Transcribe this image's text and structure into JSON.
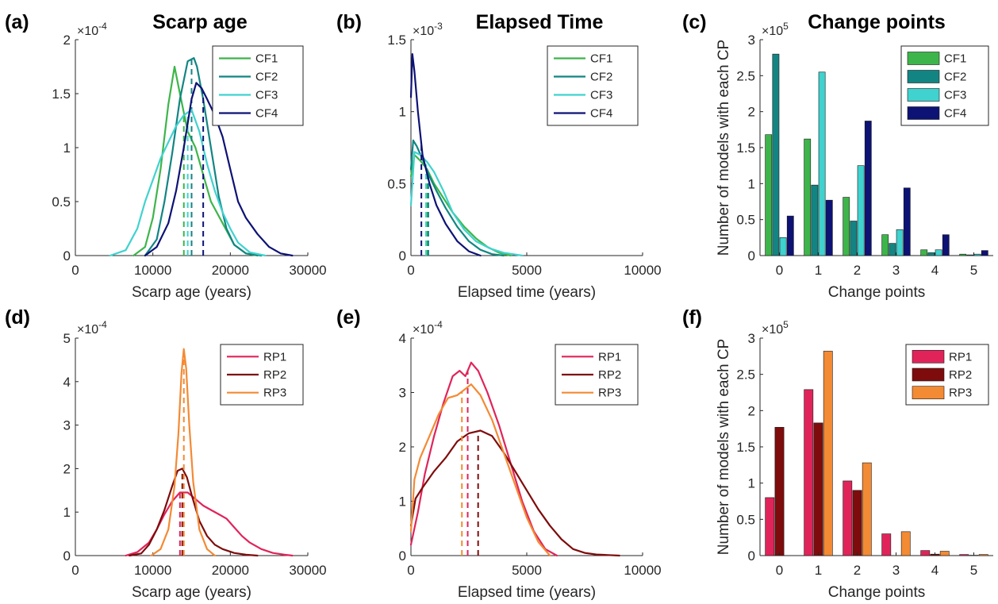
{
  "colors": {
    "CF1": "#3db54a",
    "CF2": "#128583",
    "CF3": "#3fd2cf",
    "CF4": "#0d1275",
    "RP1": "#e0245a",
    "RP2": "#7e0c0c",
    "RP3": "#f38a34"
  },
  "chart_data": [
    {
      "panel": "(a)",
      "type": "line",
      "title": "Scarp age",
      "xlabel": "Scarp age (years)",
      "ylabel": "",
      "xlim": [
        0,
        30000
      ],
      "ylim": [
        0,
        2
      ],
      "y_exponent": "×10^-4",
      "xticks": [
        0,
        10000,
        20000,
        30000
      ],
      "xtick_labels": [
        "0",
        "10000",
        "20000",
        "30000"
      ],
      "yticks": [
        0,
        0.5,
        1,
        1.5,
        2
      ],
      "ytick_labels": [
        "0",
        "0.5",
        "1",
        "1.5",
        "2"
      ],
      "legend_position": "top-right",
      "series": [
        {
          "name": "CF1",
          "color_key": "CF1",
          "median": 14000,
          "x": [
            7500,
            9000,
            10000,
            11000,
            12000,
            12800,
            13500,
            14500,
            15500,
            16500,
            17500,
            19000,
            20500,
            22000,
            23500
          ],
          "y": [
            0,
            0.08,
            0.35,
            0.8,
            1.4,
            1.75,
            1.5,
            1.15,
            1.0,
            0.75,
            0.5,
            0.3,
            0.1,
            0.02,
            0
          ]
        },
        {
          "name": "CF2",
          "color_key": "CF2",
          "median": 15000,
          "x": [
            9000,
            10500,
            11500,
            12500,
            13500,
            14500,
            15300,
            15700,
            16500,
            17500,
            18500,
            19500,
            20500,
            22000,
            24000
          ],
          "y": [
            0,
            0.15,
            0.5,
            0.95,
            1.45,
            1.8,
            1.83,
            1.75,
            1.45,
            1.0,
            0.55,
            0.25,
            0.1,
            0.02,
            0
          ]
        },
        {
          "name": "CF3",
          "color_key": "CF3",
          "median": 14500,
          "x": [
            4500,
            6500,
            8000,
            9000,
            10000,
            11000,
            12000,
            13000,
            14000,
            15000,
            16000,
            17000,
            18000,
            19000,
            20000,
            21000,
            22500,
            24500
          ],
          "y": [
            0,
            0.05,
            0.25,
            0.5,
            0.7,
            0.9,
            1.05,
            1.2,
            1.3,
            1.35,
            1.15,
            0.85,
            0.6,
            0.4,
            0.25,
            0.12,
            0.03,
            0
          ]
        },
        {
          "name": "CF4",
          "color_key": "CF4",
          "median": 16500,
          "x": [
            9000,
            10500,
            12000,
            13000,
            14000,
            15000,
            15600,
            16300,
            17000,
            18000,
            19000,
            20000,
            21000,
            22000,
            23500,
            25000,
            26500,
            28000
          ],
          "y": [
            0,
            0.08,
            0.3,
            0.6,
            1.0,
            1.45,
            1.6,
            1.55,
            1.45,
            1.3,
            1.1,
            0.8,
            0.5,
            0.35,
            0.2,
            0.08,
            0.02,
            0
          ]
        }
      ]
    },
    {
      "panel": "(b)",
      "type": "line",
      "title": "Elapsed Time",
      "xlabel": "Elapsed time (years)",
      "ylabel": "",
      "xlim": [
        0,
        10000
      ],
      "ylim": [
        0,
        1.5
      ],
      "y_exponent": "×10^-3",
      "xticks": [
        0,
        5000,
        10000
      ],
      "xtick_labels": [
        "0",
        "5000",
        "10000"
      ],
      "yticks": [
        0,
        0.5,
        1,
        1.5
      ],
      "ytick_labels": [
        "0",
        "0.5",
        "1",
        "1.5"
      ],
      "legend_position": "top-right",
      "series": [
        {
          "name": "CF1",
          "color_key": "CF1",
          "median": 700,
          "x": [
            0,
            150,
            400,
            700,
            1000,
            1400,
            1800,
            2300,
            2800,
            3300,
            3800,
            4300
          ],
          "y": [
            0.55,
            0.7,
            0.66,
            0.6,
            0.5,
            0.4,
            0.3,
            0.2,
            0.12,
            0.06,
            0.02,
            0
          ]
        },
        {
          "name": "CF2",
          "color_key": "CF2",
          "median": 750,
          "x": [
            0,
            100,
            250,
            500,
            800,
            1100,
            1500,
            2000,
            2500,
            3000,
            3500,
            4000
          ],
          "y": [
            0.6,
            0.8,
            0.76,
            0.67,
            0.55,
            0.45,
            0.33,
            0.2,
            0.1,
            0.04,
            0.01,
            0
          ]
        },
        {
          "name": "CF3",
          "color_key": "CF3",
          "median": 650,
          "x": [
            0,
            150,
            400,
            700,
            1000,
            1400,
            1800,
            2300,
            2800,
            3400,
            4000,
            4800
          ],
          "y": [
            0.35,
            0.72,
            0.7,
            0.65,
            0.58,
            0.45,
            0.3,
            0.18,
            0.1,
            0.05,
            0.02,
            0
          ]
        },
        {
          "name": "CF4",
          "color_key": "CF4",
          "median": 450,
          "x": [
            0,
            60,
            150,
            300,
            500,
            800,
            1100,
            1500,
            2000,
            2500,
            3000
          ],
          "y": [
            1.1,
            1.4,
            1.28,
            1.0,
            0.7,
            0.5,
            0.35,
            0.22,
            0.1,
            0.03,
            0
          ]
        }
      ]
    },
    {
      "panel": "(c)",
      "type": "bar",
      "title": "Change points",
      "xlabel": "Change points",
      "ylabel": "Number of models with each CP",
      "ylim": [
        0,
        3
      ],
      "y_exponent": "×10^5",
      "categories": [
        "0",
        "1",
        "2",
        "3",
        "4",
        "5"
      ],
      "yticks": [
        0,
        0.5,
        1,
        1.5,
        2,
        2.5,
        3
      ],
      "ytick_labels": [
        "0",
        "0.5",
        "1",
        "1.5",
        "2",
        "2.5",
        "3"
      ],
      "legend_position": "top-right",
      "series": [
        {
          "name": "CF1",
          "color_key": "CF1",
          "values": [
            1.68,
            1.62,
            0.81,
            0.29,
            0.08,
            0.02
          ]
        },
        {
          "name": "CF2",
          "color_key": "CF2",
          "values": [
            2.8,
            0.98,
            0.48,
            0.17,
            0.04,
            0.01
          ]
        },
        {
          "name": "CF3",
          "color_key": "CF3",
          "values": [
            0.25,
            2.55,
            1.25,
            0.36,
            0.08,
            0.02
          ]
        },
        {
          "name": "CF4",
          "color_key": "CF4",
          "values": [
            0.55,
            0.77,
            1.87,
            0.94,
            0.29,
            0.07
          ]
        }
      ]
    },
    {
      "panel": "(d)",
      "type": "line",
      "title": "",
      "xlabel": "Scarp age (years)",
      "ylabel": "",
      "xlim": [
        0,
        30000
      ],
      "ylim": [
        0,
        5
      ],
      "y_exponent": "×10^-4",
      "xticks": [
        0,
        10000,
        20000,
        30000
      ],
      "xtick_labels": [
        "0",
        "10000",
        "20000",
        "30000"
      ],
      "yticks": [
        0,
        1,
        2,
        3,
        4,
        5
      ],
      "ytick_labels": [
        "0",
        "1",
        "2",
        "3",
        "4",
        "5"
      ],
      "legend_position": "top-right",
      "series": [
        {
          "name": "RP1",
          "color_key": "RP1",
          "median": 13500,
          "x": [
            6500,
            8000,
            9500,
            10500,
            11500,
            12500,
            13500,
            14500,
            15500,
            16500,
            17500,
            18500,
            19500,
            20500,
            21500,
            22500,
            24000,
            25500,
            27000,
            28000
          ],
          "y": [
            0,
            0.08,
            0.3,
            0.6,
            0.95,
            1.25,
            1.45,
            1.45,
            1.3,
            1.15,
            1.05,
            0.95,
            0.85,
            0.65,
            0.45,
            0.3,
            0.15,
            0.06,
            0.02,
            0
          ]
        },
        {
          "name": "RP2",
          "color_key": "RP2",
          "median": 13800,
          "x": [
            7000,
            8500,
            9500,
            10500,
            11500,
            12500,
            13200,
            13800,
            14400,
            15000,
            16000,
            17000,
            18000,
            19000,
            20500,
            22000,
            23500
          ],
          "y": [
            0,
            0.05,
            0.25,
            0.6,
            1.05,
            1.6,
            1.95,
            2.0,
            1.8,
            1.4,
            0.8,
            0.45,
            0.25,
            0.15,
            0.06,
            0.02,
            0
          ]
        },
        {
          "name": "RP3",
          "color_key": "RP3",
          "median": 14000,
          "x": [
            9800,
            11000,
            12000,
            12800,
            13300,
            13700,
            14000,
            14300,
            14700,
            15200,
            16000,
            17000,
            18000
          ],
          "y": [
            0,
            0.15,
            0.6,
            1.6,
            2.8,
            4.2,
            4.75,
            4.3,
            3.0,
            1.7,
            0.6,
            0.15,
            0
          ]
        }
      ]
    },
    {
      "panel": "(e)",
      "type": "line",
      "title": "",
      "xlabel": "Elapsed time (years)",
      "ylabel": "",
      "xlim": [
        0,
        10000
      ],
      "ylim": [
        0,
        4
      ],
      "y_exponent": "×10^-4",
      "xticks": [
        0,
        5000,
        10000
      ],
      "xtick_labels": [
        "0",
        "5000",
        "10000"
      ],
      "yticks": [
        0,
        1,
        2,
        3,
        4
      ],
      "ytick_labels": [
        "0",
        "1",
        "2",
        "3",
        "4"
      ],
      "legend_position": "top-right",
      "series": [
        {
          "name": "RP1",
          "color_key": "RP1",
          "median": 2450,
          "x": [
            0,
            300,
            600,
            1000,
            1400,
            1800,
            2100,
            2350,
            2600,
            2900,
            3300,
            3800,
            4300,
            4800,
            5300,
            5800,
            6300
          ],
          "y": [
            0.2,
            0.8,
            1.5,
            2.2,
            2.8,
            3.3,
            3.4,
            3.3,
            3.55,
            3.4,
            3.0,
            2.4,
            1.7,
            1.0,
            0.45,
            0.12,
            0
          ]
        },
        {
          "name": "RP2",
          "color_key": "RP2",
          "median": 2900,
          "x": [
            0,
            200,
            500,
            1000,
            1500,
            2000,
            2500,
            3000,
            3500,
            4000,
            4500,
            5000,
            5500,
            6000,
            6500,
            7000,
            7500,
            8000,
            8500,
            9000
          ],
          "y": [
            0.55,
            1.05,
            1.25,
            1.55,
            1.8,
            2.1,
            2.25,
            2.3,
            2.2,
            1.9,
            1.55,
            1.2,
            0.85,
            0.55,
            0.3,
            0.12,
            0.05,
            0.02,
            0.01,
            0
          ]
        },
        {
          "name": "RP3",
          "color_key": "RP3",
          "median": 2200,
          "x": [
            0,
            150,
            400,
            800,
            1200,
            1600,
            2000,
            2300,
            2600,
            3000,
            3500,
            4000,
            4500,
            5000,
            5500,
            6000
          ],
          "y": [
            0.45,
            1.4,
            1.8,
            2.2,
            2.6,
            2.9,
            2.95,
            3.05,
            3.15,
            2.95,
            2.5,
            1.9,
            1.3,
            0.7,
            0.25,
            0
          ]
        }
      ]
    },
    {
      "panel": "(f)",
      "type": "bar",
      "title": "",
      "xlabel": "Change points",
      "ylabel": "Number of models with each CP",
      "ylim": [
        0,
        3
      ],
      "y_exponent": "×10^5",
      "categories": [
        "0",
        "1",
        "2",
        "3",
        "4",
        "5"
      ],
      "yticks": [
        0,
        0.5,
        1,
        1.5,
        2,
        2.5,
        3
      ],
      "ytick_labels": [
        "0",
        "0.5",
        "1",
        "1.5",
        "2",
        "2.5",
        "3"
      ],
      "legend_position": "top-right",
      "series": [
        {
          "name": "RP1",
          "color_key": "RP1",
          "values": [
            0.8,
            2.29,
            1.03,
            0.3,
            0.07,
            0.015
          ]
        },
        {
          "name": "RP2",
          "color_key": "RP2",
          "values": [
            1.77,
            1.83,
            0.9,
            0.0,
            0.02,
            0.005
          ]
        },
        {
          "name": "RP3",
          "color_key": "RP3",
          "values": [
            0.0,
            2.82,
            1.28,
            0.33,
            0.06,
            0.015
          ]
        }
      ]
    }
  ]
}
